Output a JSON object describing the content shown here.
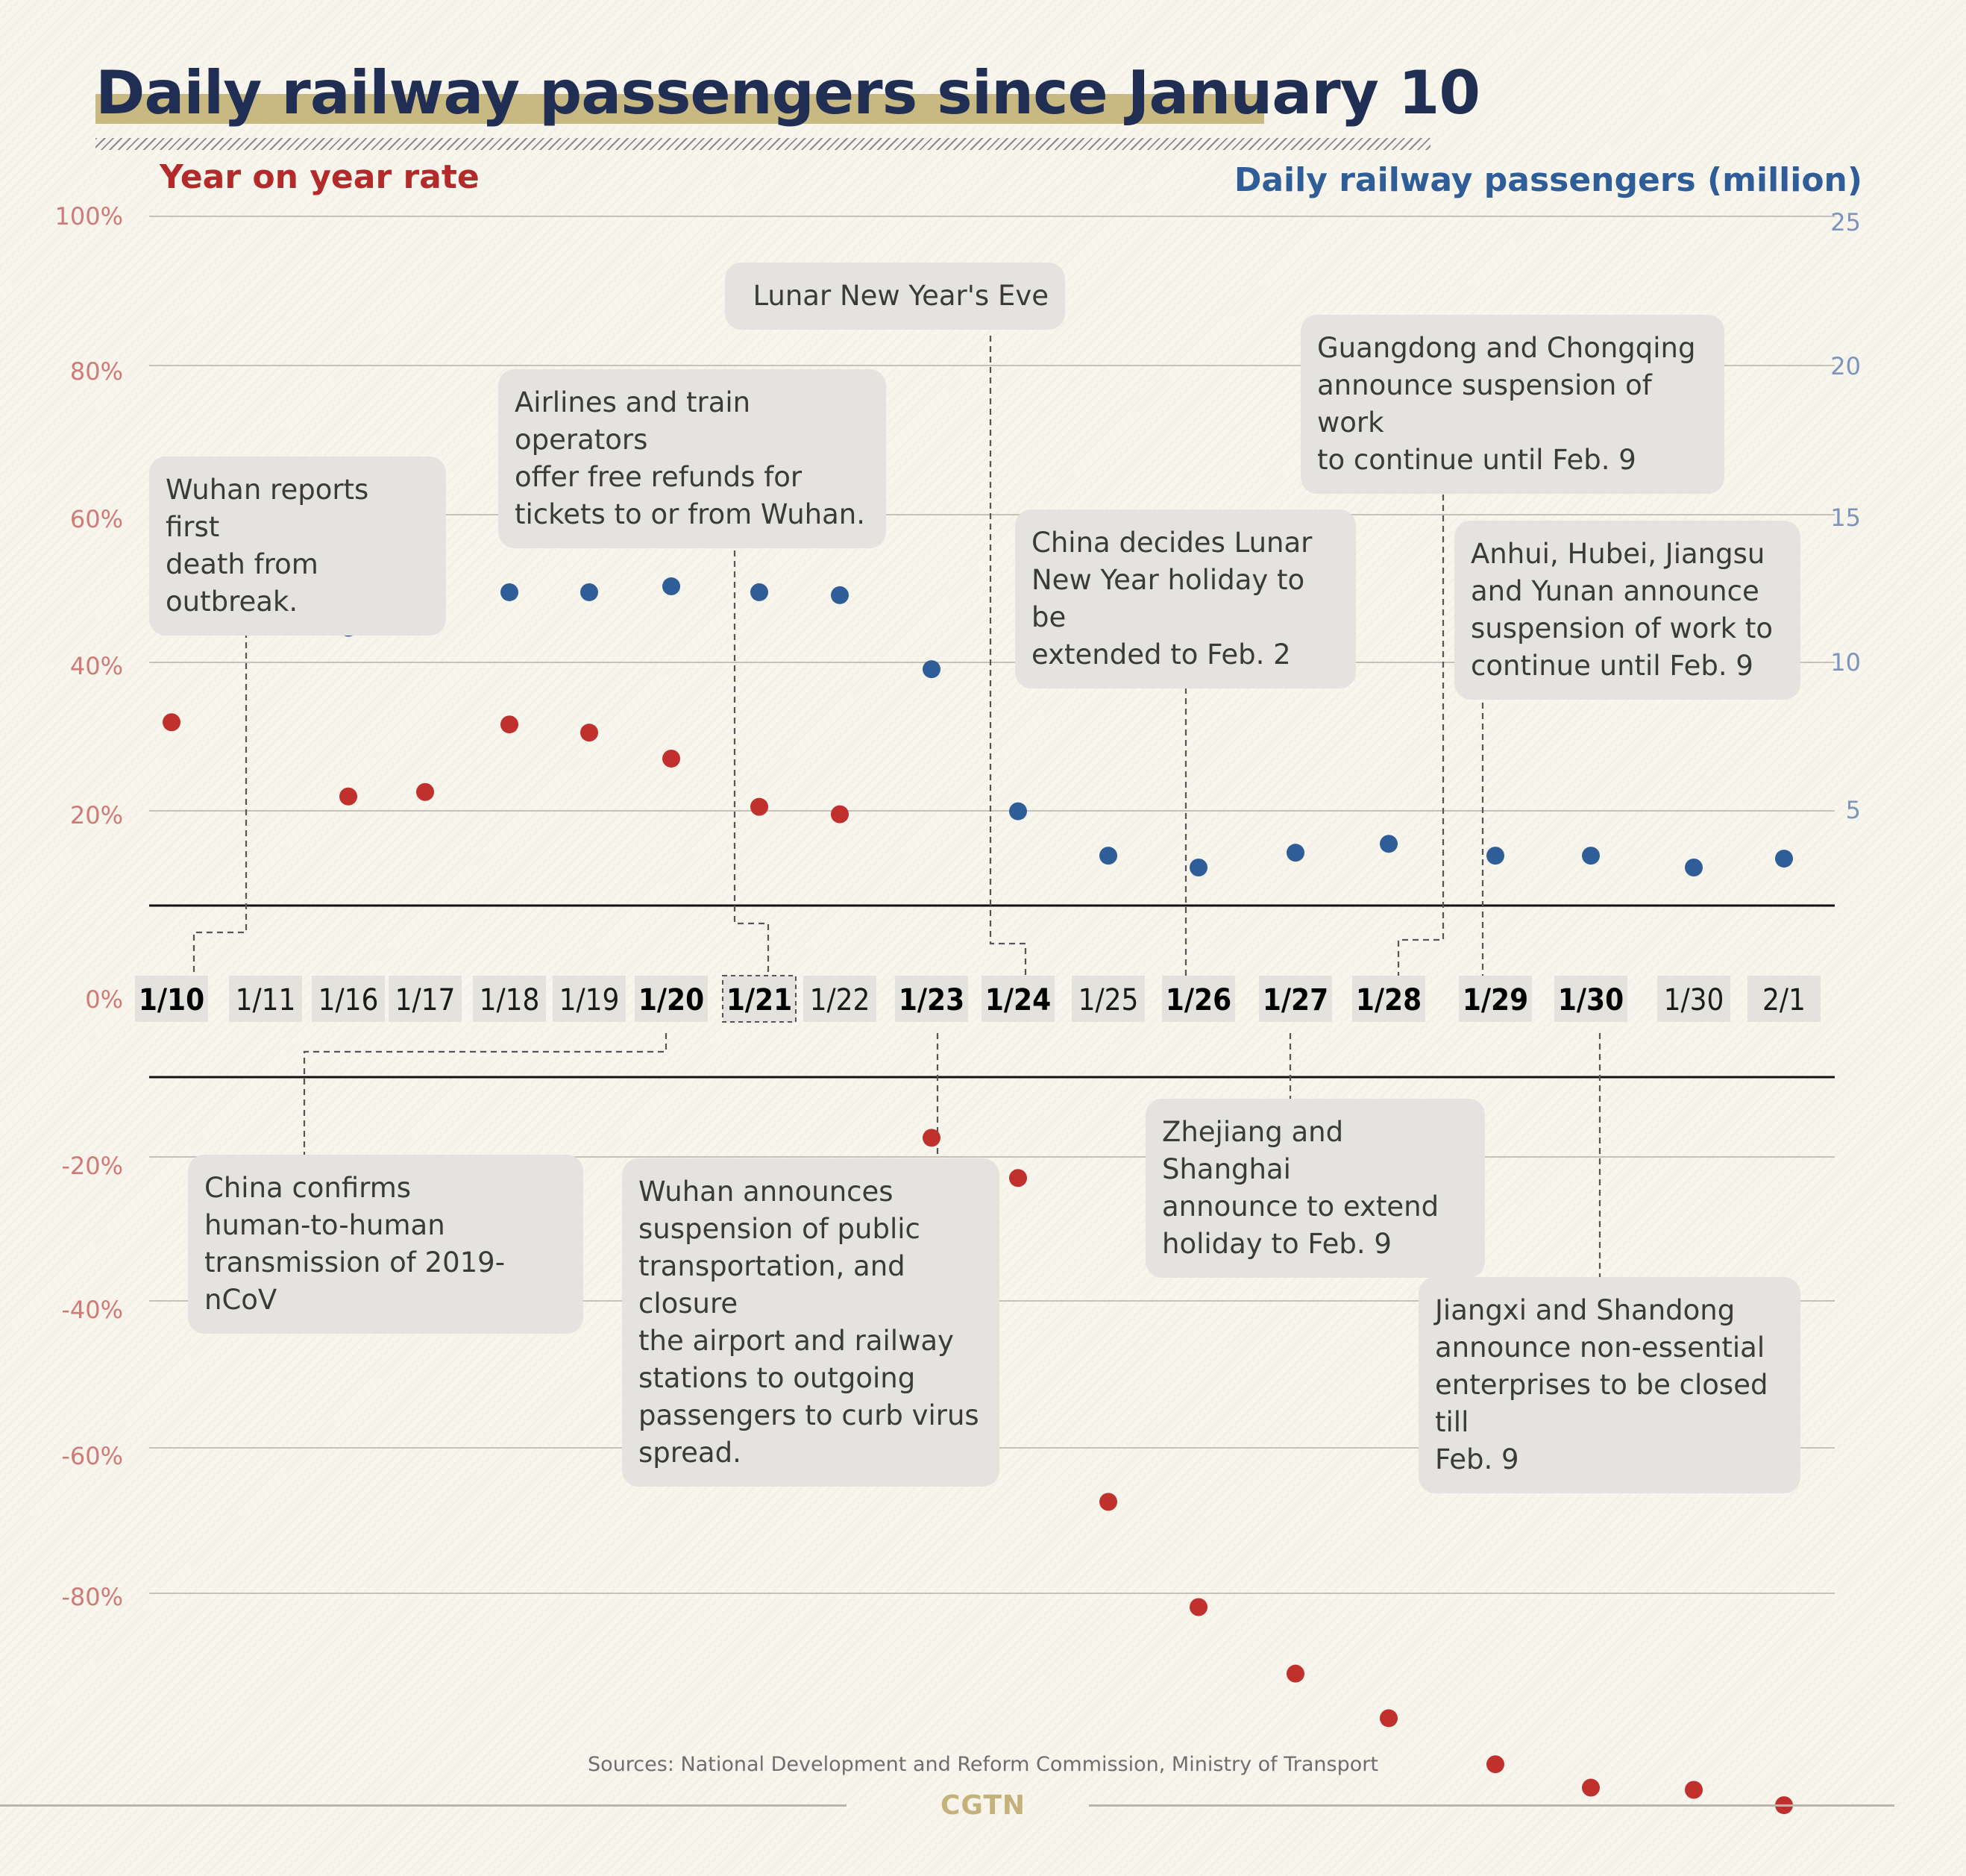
{
  "title": "Daily railway passengers since January 10",
  "left_axis_title": "Year on year rate",
  "right_axis_title": "Daily railway passengers (million)",
  "colors": {
    "rate": "#c0302d",
    "passengers": "#2f5d97",
    "title": "#1f2e52",
    "highlight": "#c8b882"
  },
  "chart_data": {
    "type": "scatter",
    "title": "Daily railway passengers since January 10",
    "categories": [
      "1/10",
      "1/11",
      "1/16",
      "1/17",
      "1/18",
      "1/19",
      "1/20",
      "1/21",
      "1/22",
      "1/23",
      "1/24",
      "1/25",
      "1/26",
      "1/27",
      "1/28",
      "1/29",
      "1/30",
      "1/30",
      "2/1"
    ],
    "bold_categories": [
      0,
      6,
      7,
      9,
      10,
      12,
      13,
      14,
      15,
      16
    ],
    "left_axis": {
      "label": "Year on year rate",
      "ticks": [
        "100%",
        "80%",
        "60%",
        "40%",
        "20%",
        "0%",
        "-20%",
        "-40%",
        "-60%",
        "-80%"
      ]
    },
    "right_axis": {
      "label": "Daily railway passengers (million)",
      "ticks": [
        "25",
        "20",
        "15",
        "10",
        "5"
      ]
    },
    "series": [
      {
        "name": "Year on year rate",
        "axis": "left",
        "unit": "%",
        "values": [
          24.7,
          null,
          14.7,
          15.3,
          24.4,
          23.3,
          19.8,
          13.3,
          12.3,
          -8.3,
          -13.8,
          -58.1,
          -72.5,
          -81.6,
          -87.7,
          -94.0,
          -97.2,
          -97.5,
          -99.6
        ]
      },
      {
        "name": "Daily railway passengers",
        "axis": "right",
        "unit": "million",
        "values": [
          11.4,
          null,
          11.2,
          11.9,
          12.4,
          12.4,
          12.6,
          12.4,
          12.3,
          9.8,
          5.0,
          3.5,
          3.1,
          3.6,
          3.9,
          3.5,
          3.5,
          3.1,
          3.4
        ]
      }
    ]
  },
  "annotations": [
    {
      "text": "Wuhan reports first\ndeath from outbreak."
    },
    {
      "text": "Airlines and train operators\noffer free refunds for\ntickets to or from Wuhan."
    },
    {
      "text": "Lunar New Year's Eve"
    },
    {
      "text": "Guangdong and Chongqing\nannounce suspension of work\nto continue until Feb. 9"
    },
    {
      "text": "China decides Lunar\nNew Year holiday to be\nextended to Feb. 2"
    },
    {
      "text": "Anhui, Hubei, Jiangsu\nand Yunan announce\nsuspension of work to\ncontinue until Feb. 9"
    },
    {
      "text": "China confirms\nhuman-to-human\ntransmission of 2019-nCoV"
    },
    {
      "text": "Wuhan announces\nsuspension of public\ntransportation, and closure\nthe airport and railway\nstations to outgoing\npassengers to curb virus\nspread."
    },
    {
      "text": "Zhejiang and Shanghai\nannounce to extend\nholiday to Feb. 9"
    },
    {
      "text": "Jiangxi and Shandong\nannounce non-essential\nenterprises to be closed till\nFeb. 9"
    }
  ],
  "sources": "Sources: National Development and Reform Commission, Ministry of Transport",
  "logo": "CGTN"
}
